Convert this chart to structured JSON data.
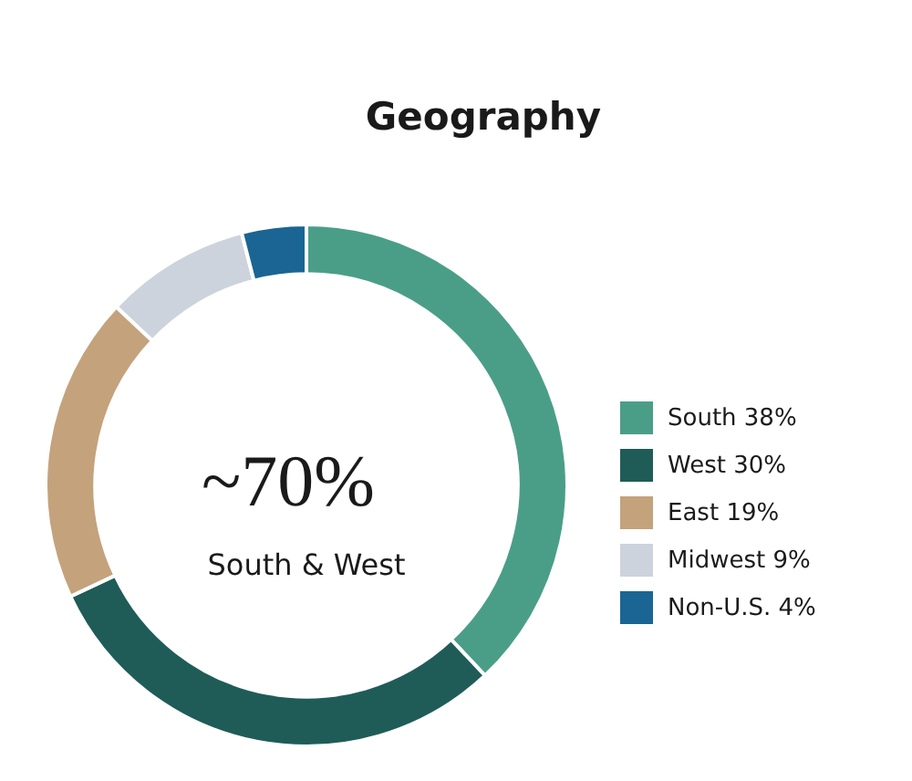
{
  "chart_data": {
    "type": "donut",
    "title": "Geography",
    "categories": [
      "South",
      "West",
      "East",
      "Midwest",
      "Non-U.S."
    ],
    "values": [
      38,
      30,
      19,
      9,
      4
    ],
    "colors": [
      "#4a9e88",
      "#1f5c58",
      "#c4a27c",
      "#ccd3dc",
      "#1a6593"
    ],
    "value_labels": [
      "38%",
      "30%",
      "19%",
      "9%",
      "4%"
    ],
    "annotations": [
      "~70%",
      "South & West"
    ],
    "legend": "right"
  }
}
